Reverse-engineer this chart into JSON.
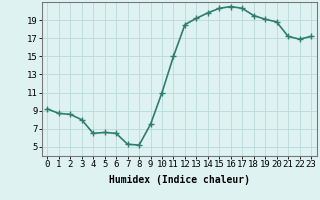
{
  "x": [
    0,
    1,
    2,
    3,
    4,
    5,
    6,
    7,
    8,
    9,
    10,
    11,
    12,
    13,
    14,
    15,
    16,
    17,
    18,
    19,
    20,
    21,
    22,
    23
  ],
  "y": [
    9.2,
    8.7,
    8.6,
    8.0,
    6.5,
    6.6,
    6.5,
    5.3,
    5.2,
    7.5,
    11.0,
    15.0,
    18.5,
    19.2,
    19.8,
    20.3,
    20.5,
    20.3,
    19.5,
    19.1,
    18.8,
    17.2,
    16.9,
    17.2
  ],
  "xlabel": "Humidex (Indice chaleur)",
  "ylabel": "",
  "xlim": [
    -0.5,
    23.5
  ],
  "ylim": [
    4.0,
    21.0
  ],
  "yticks": [
    5,
    7,
    9,
    11,
    13,
    15,
    17,
    19
  ],
  "xticks": [
    0,
    1,
    2,
    3,
    4,
    5,
    6,
    7,
    8,
    9,
    10,
    11,
    12,
    13,
    14,
    15,
    16,
    17,
    18,
    19,
    20,
    21,
    22,
    23
  ],
  "bg_color": "#dff2f2",
  "grid_color": "#b8dada",
  "line_color": "#2e7d6e",
  "marker": "+",
  "line_width": 1.2,
  "marker_size": 4,
  "marker_edge_width": 1.0,
  "font_size_xlabel": 7,
  "font_size_ticks": 6.5
}
